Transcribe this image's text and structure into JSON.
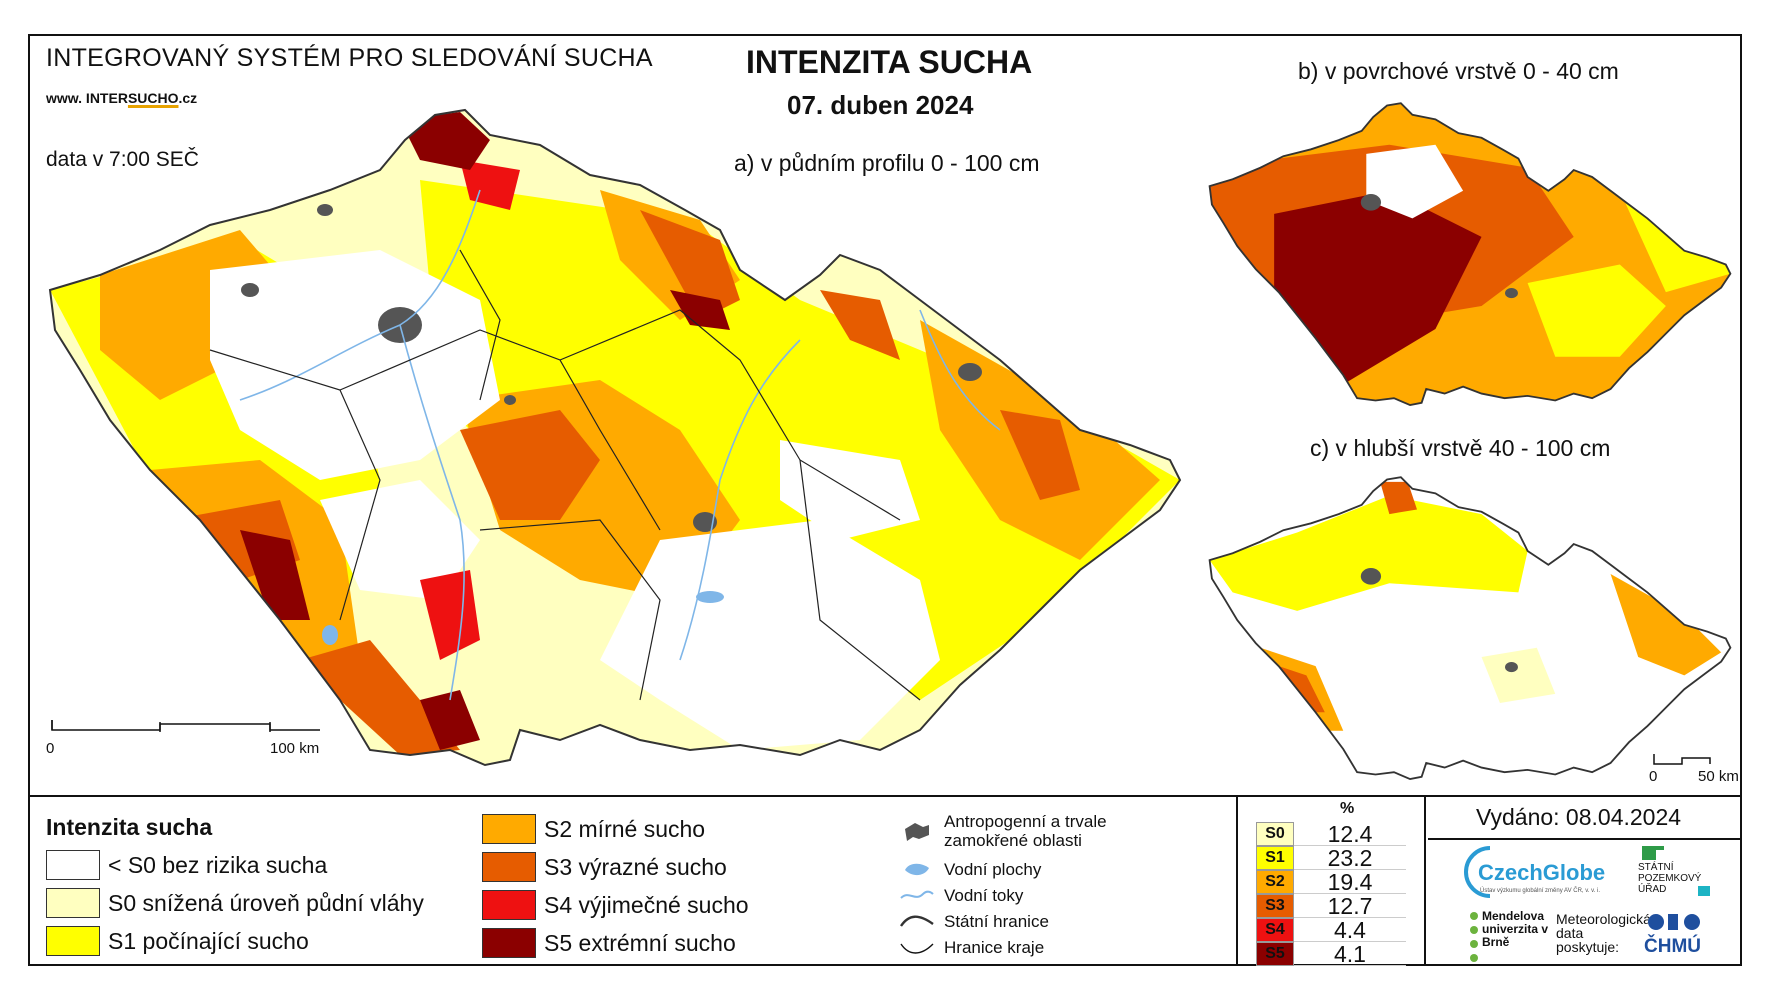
{
  "header": {
    "system_name": "INTEGROVANÝ SYSTÉM PRO SLEDOVÁNÍ SUCHA",
    "url_prefix": "www. INTER",
    "url_highlight": "SUCHO",
    "url_suffix": ".cz",
    "data_time": "data v 7:00 SEČ",
    "title": "INTENZITA SUCHA",
    "date": "07. duben 2024"
  },
  "maps": {
    "main_subtitle": "a) v půdním profilu 0 - 100 cm",
    "surface_subtitle": "b) v povrchové vrstvě 0 - 40 cm",
    "deep_subtitle": "c) v hlubší vrstvě 40 - 100 cm",
    "main_scale": {
      "start": "0",
      "end": "100 km"
    },
    "inset_scale": {
      "start": "0",
      "end": "50 km"
    }
  },
  "legend": {
    "title": "Intenzita sucha",
    "classes": [
      {
        "label": "< S0 bez rizika sucha",
        "color": "#ffffff"
      },
      {
        "label": "S0 snížená úroveň půdní vláhy",
        "color": "#ffffc0"
      },
      {
        "label": "S1 počínající sucho",
        "color": "#ffff00"
      },
      {
        "label": "S2 mírné sucho",
        "color": "#ffaa00"
      },
      {
        "label": "S3 výrazné sucho",
        "color": "#e65c00"
      },
      {
        "label": "S4 výjimečné sucho",
        "color": "#ee1111"
      },
      {
        "label": "S5 extrémní sucho",
        "color": "#8b0000"
      }
    ],
    "symbols": [
      {
        "label": "Antropogenní a trvale zamokřené oblasti",
        "icon": "urban-area-icon"
      },
      {
        "label": "Vodní plochy",
        "icon": "water-body-icon"
      },
      {
        "label": "Vodní toky",
        "icon": "river-icon"
      },
      {
        "label": "Státní hranice",
        "icon": "state-border-icon"
      },
      {
        "label": "Hranice kraje",
        "icon": "region-border-icon"
      }
    ]
  },
  "percentages": {
    "header": "%",
    "rows": [
      {
        "cls": "S0",
        "value": "12.4",
        "color": "#ffffc0"
      },
      {
        "cls": "S1",
        "value": "23.2",
        "color": "#ffff00"
      },
      {
        "cls": "S2",
        "value": "19.4",
        "color": "#ffaa00"
      },
      {
        "cls": "S3",
        "value": "12.7",
        "color": "#e65c00"
      },
      {
        "cls": "S4",
        "value": "4.4",
        "color": "#ee1111"
      },
      {
        "cls": "S5",
        "value": "4.1",
        "color": "#8b0000"
      }
    ]
  },
  "footer": {
    "issued": "Vydáno: 08.04.2024",
    "czechglobe": "CzechGlobe",
    "czechglobe_sub": "Ústav výzkumu globální změny AV ČR, v. v. i.",
    "spu": "STÁTNÍ POZEMKOVÝ ÚŘAD",
    "mendel": "Mendelova univerzita v Brně",
    "meteo": "Meteorologická data poskytuje:",
    "chmu": "ČHMÚ"
  }
}
